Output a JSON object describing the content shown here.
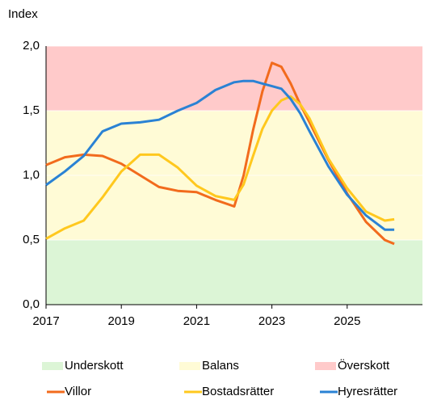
{
  "chart_data": {
    "type": "line",
    "y_label": "Index",
    "x": [
      2017,
      2017.5,
      2018,
      2018.5,
      2019,
      2019.5,
      2020,
      2020.5,
      2021,
      2021.5,
      2022,
      2022.25,
      2022.5,
      2022.75,
      2023,
      2023.25,
      2023.5,
      2023.75,
      2024,
      2024.5,
      2025,
      2025.5,
      2026,
      2026.25
    ],
    "series": [
      {
        "name": "Villor",
        "color": "#f26b1d",
        "values": [
          1.08,
          1.14,
          1.16,
          1.15,
          1.09,
          1.0,
          0.91,
          0.88,
          0.87,
          0.81,
          0.76,
          1.0,
          1.35,
          1.65,
          1.87,
          1.84,
          1.71,
          1.55,
          1.41,
          1.12,
          0.86,
          0.64,
          0.5,
          0.47
        ]
      },
      {
        "name": "Bostadsrätter",
        "color": "#ffc81e",
        "values": [
          0.51,
          0.59,
          0.65,
          0.83,
          1.03,
          1.16,
          1.16,
          1.06,
          0.92,
          0.84,
          0.81,
          0.93,
          1.15,
          1.36,
          1.5,
          1.58,
          1.61,
          1.55,
          1.44,
          1.13,
          0.9,
          0.72,
          0.65,
          0.66
        ]
      },
      {
        "name": "Hyresrätter",
        "color": "#2a82d4",
        "values": [
          0.925,
          1.03,
          1.15,
          1.34,
          1.4,
          1.41,
          1.43,
          1.5,
          1.56,
          1.66,
          1.72,
          1.73,
          1.73,
          1.71,
          1.69,
          1.67,
          1.59,
          1.48,
          1.34,
          1.07,
          0.85,
          0.69,
          0.58,
          0.58
        ]
      }
    ],
    "bands": [
      {
        "name": "Underskott",
        "color": "#dcf5d6",
        "from": 0,
        "to": 0.5
      },
      {
        "name": "Balans",
        "color": "#fffbd6",
        "from": 0.5,
        "to": 1.5
      },
      {
        "name": "Överskott",
        "color": "#ffcaca",
        "from": 1.5,
        "to": 2.0
      }
    ],
    "xlim": [
      2017,
      2027
    ],
    "xticks": [
      2017,
      2019,
      2021,
      2023,
      2025
    ],
    "ylim": [
      0,
      2.0
    ],
    "yticks": [
      {
        "value": 0,
        "label": "0,0"
      },
      {
        "value": 0.5,
        "label": "0,5"
      },
      {
        "value": 1.0,
        "label": "1,0"
      },
      {
        "value": 1.5,
        "label": "1,5"
      },
      {
        "value": 2.0,
        "label": "2,0"
      }
    ],
    "grid": true
  }
}
